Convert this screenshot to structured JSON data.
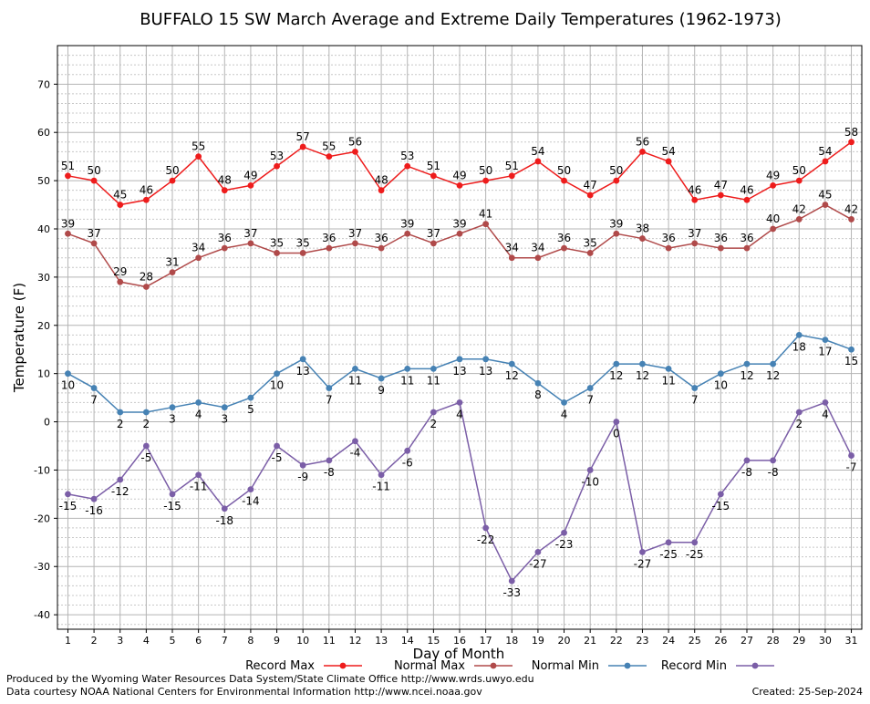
{
  "chart_data": {
    "type": "line",
    "title": "BUFFALO 15 SW March Average and Extreme Daily Temperatures (1962-1973)",
    "xlabel": "Day of Month",
    "ylabel": "Temperature (F)",
    "x": [
      1,
      2,
      3,
      4,
      5,
      6,
      7,
      8,
      9,
      10,
      11,
      12,
      13,
      14,
      15,
      16,
      17,
      18,
      19,
      20,
      21,
      22,
      23,
      24,
      25,
      26,
      27,
      28,
      29,
      30,
      31
    ],
    "xlim": [
      0.6,
      31.4
    ],
    "ylim": [
      -43,
      78
    ],
    "yticks": [
      -40,
      -30,
      -20,
      -10,
      0,
      10,
      20,
      30,
      40,
      50,
      60,
      70
    ],
    "grid": true,
    "legend_position": "bottom",
    "series": [
      {
        "name": "Record Max",
        "color": "#ee1c1c",
        "label_position": "above",
        "values": [
          51,
          50,
          45,
          46,
          50,
          55,
          48,
          49,
          53,
          57,
          55,
          56,
          48,
          53,
          51,
          49,
          50,
          51,
          54,
          50,
          47,
          50,
          56,
          54,
          46,
          47,
          46,
          49,
          50,
          54,
          58
        ]
      },
      {
        "name": "Normal Max",
        "color": "#b04a4a",
        "label_position": "above",
        "values": [
          39,
          37,
          29,
          28,
          31,
          34,
          36,
          37,
          35,
          35,
          36,
          37,
          36,
          39,
          37,
          39,
          41,
          34,
          34,
          36,
          35,
          39,
          38,
          36,
          37,
          36,
          36,
          40,
          42,
          45,
          42
        ]
      },
      {
        "name": "Normal Min",
        "color": "#4682b4",
        "label_position": "below",
        "values": [
          10,
          7,
          2,
          2,
          3,
          4,
          3,
          5,
          10,
          13,
          7,
          11,
          9,
          11,
          11,
          13,
          13,
          12,
          8,
          4,
          7,
          12,
          12,
          11,
          7,
          10,
          12,
          12,
          18,
          17,
          15
        ]
      },
      {
        "name": "Record Min",
        "color": "#7b5ea7",
        "label_position": "below",
        "values": [
          -15,
          -16,
          -12,
          -5,
          -15,
          -11,
          -18,
          -14,
          -5,
          -9,
          -8,
          -4,
          -11,
          -6,
          2,
          4,
          -22,
          -33,
          -27,
          -23,
          -10,
          0,
          -27,
          -25,
          -25,
          -15,
          -8,
          -8,
          2,
          4,
          -7
        ]
      }
    ]
  },
  "footer": {
    "left_line1": "Produced by the Wyoming Water Resources Data System/State Climate Office http://www.wrds.uwyo.edu",
    "left_line2": "Data courtesy NOAA National Centers for Environmental Information http://www.ncei.noaa.gov",
    "created": "Created:  25-Sep-2024"
  }
}
